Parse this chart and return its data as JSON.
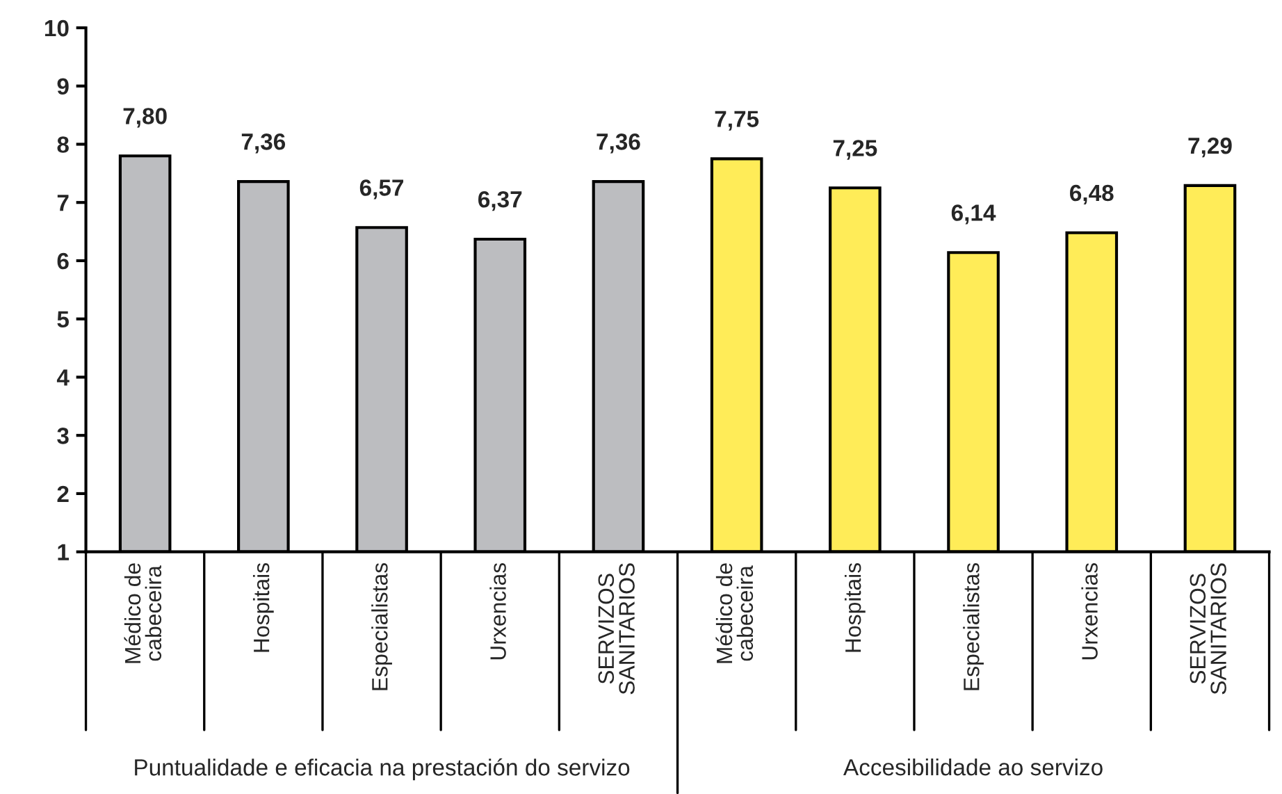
{
  "chart_data": {
    "type": "bar",
    "categories": [
      "Médico de\ncabeceira",
      "Hospitais",
      "Especialistas",
      "Urxencias",
      "SERVIZOS\nSANITARIOS",
      "Médico de\ncabeceira",
      "Hospitais",
      "Especialistas",
      "Urxencias",
      "SERVIZOS\nSANITARIOS"
    ],
    "values": [
      7.8,
      7.36,
      6.57,
      6.37,
      7.36,
      7.75,
      7.25,
      6.14,
      6.48,
      7.29
    ],
    "colors": [
      "#bcbdc0",
      "#bcbdc0",
      "#bcbdc0",
      "#bcbdc0",
      "#bcbdc0",
      "#ffec58",
      "#ffec58",
      "#ffec58",
      "#ffec58",
      "#ffec58"
    ],
    "value_labels": [
      "7,80",
      "7,36",
      "6,57",
      "6,37",
      "7,36",
      "7,75",
      "7,25",
      "6,14",
      "6,48",
      "7,29"
    ],
    "ylim": [
      1,
      10
    ],
    "yticks": [
      1,
      2,
      3,
      4,
      5,
      6,
      7,
      8,
      9,
      10
    ],
    "grid": false,
    "annotations": [
      "Puntualidade e eficacia na prestación do servizo",
      "Accesibilidade ao servizo"
    ]
  }
}
